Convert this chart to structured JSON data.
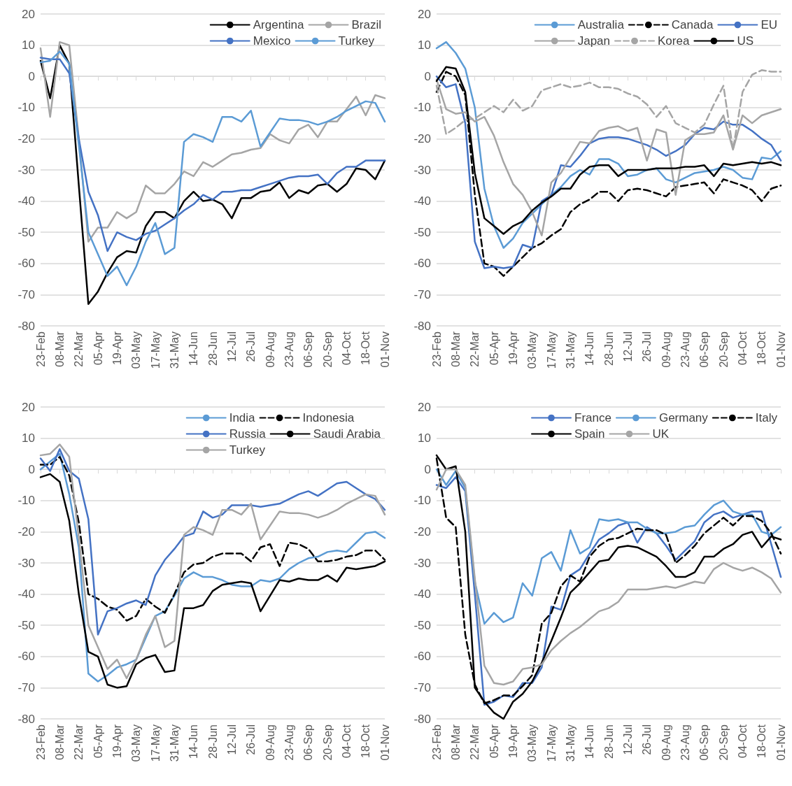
{
  "chart_data": [
    {
      "type": "line",
      "categories": [
        "23-Feb",
        null,
        "08-Mar",
        null,
        "22-Mar",
        null,
        "05-Apr",
        null,
        "19-Apr",
        null,
        "03-May",
        null,
        "17-May",
        null,
        "31-May",
        null,
        "14-Jun",
        null,
        "28-Jun",
        null,
        "12-Jul",
        null,
        "26-Jul",
        null,
        "09-Aug",
        null,
        "23-Aug",
        null,
        "06-Sep",
        null,
        "20-Sep",
        null,
        "04-Oct",
        null,
        "18-Oct",
        null,
        "01-Nov"
      ],
      "series": [
        {
          "name": "Argentina",
          "color": "#000000",
          "line_style": "solid",
          "values": [
            5,
            -7,
            10,
            4,
            -35,
            -73,
            -69,
            -63,
            -58,
            -56,
            -56.5,
            -48,
            -43.5,
            -43.5,
            -45.5,
            -40,
            -37,
            -40,
            -39.5,
            -41,
            -45.5,
            -39,
            -39,
            -37,
            -36.5,
            -34,
            -39,
            -36.5,
            -37.5,
            -35,
            -34.5,
            -37,
            -34.5,
            -29.5,
            -30,
            -33,
            -27
          ]
        },
        {
          "name": "Brazil",
          "color": "#a5a5a5",
          "line_style": "solid",
          "values": [
            9,
            -13,
            11,
            10,
            -20,
            -53,
            -48.5,
            -48.5,
            -43.5,
            -45.5,
            -43.5,
            -35,
            -37.5,
            -37.5,
            -34.5,
            -30.5,
            -32,
            -27.5,
            -29,
            -27,
            -25,
            -24.5,
            -23.5,
            -23,
            -18.5,
            -20.5,
            -21.5,
            -17,
            -15.5,
            -19.5,
            -14.5,
            -14.5,
            -10.5,
            -6.5,
            -12.5,
            -6,
            -7
          ]
        },
        {
          "name": "Mexico",
          "color": "#4472c4",
          "line_style": "solid",
          "values": [
            6,
            5.5,
            5.5,
            1,
            -20,
            -37,
            -44.5,
            -56,
            -50,
            -51.5,
            -52.5,
            -50.5,
            -49.5,
            -47.5,
            -45.5,
            -43,
            -41,
            -38,
            -39.5,
            -37,
            -37,
            -36.5,
            -36.5,
            -35.5,
            -34.5,
            -33.5,
            -32.5,
            -32,
            -32,
            -31.5,
            -34.5,
            -31,
            -29,
            -29,
            -27,
            -27,
            -27
          ]
        },
        {
          "name": "Turkey",
          "color": "#5b9bd5",
          "line_style": "solid",
          "values": [
            4.5,
            5,
            8,
            4,
            -22,
            -50,
            -57,
            -64,
            -61,
            -67,
            -61,
            -53,
            -47,
            -57,
            -55,
            -21,
            -18.5,
            -19.5,
            -21,
            -13,
            -13,
            -14.5,
            -11,
            -22.5,
            -18,
            -13.5,
            -14,
            -14,
            -14.5,
            -15.5,
            -14.5,
            -13,
            -11,
            -9.5,
            -8,
            -8.5,
            -14.5
          ]
        }
      ],
      "ylim": [
        -80,
        20
      ],
      "yticks": [
        -80,
        -70,
        -60,
        -50,
        -40,
        -30,
        -20,
        -10,
        0,
        10,
        20
      ],
      "grid": "y",
      "legend": "top right",
      "marker": "none"
    },
    {
      "type": "line",
      "categories": [
        "23-Feb",
        null,
        "08-Mar",
        null,
        "22-Mar",
        null,
        "05-Apr",
        null,
        "19-Apr",
        null,
        "03-May",
        null,
        "17-May",
        null,
        "31-May",
        null,
        "14-Jun",
        null,
        "28-Jun",
        null,
        "12-Jul",
        null,
        "26-Jul",
        null,
        "09-Aug",
        null,
        "23-Aug",
        null,
        "06-Sep",
        null,
        "20-Sep",
        null,
        "04-Oct",
        null,
        "18-Oct",
        null,
        "01-Nov"
      ],
      "series": [
        {
          "name": "Australia",
          "color": "#5b9bd5",
          "line_style": "solid",
          "values": [
            9,
            11,
            7.5,
            2.5,
            -10,
            -36,
            -48,
            -55,
            -52,
            -47,
            -44,
            -41,
            -38,
            -35.5,
            -32,
            -30,
            -31.5,
            -26.5,
            -26.5,
            -28,
            -32,
            -31.5,
            -30,
            -29.5,
            -33,
            -34,
            -32.5,
            -31,
            -30.5,
            -30,
            -29,
            -30,
            -32.5,
            -33,
            -26,
            -26.5,
            -24
          ]
        },
        {
          "name": "Canada",
          "color": "#000000",
          "line_style": "dashed",
          "values": [
            -5,
            1.5,
            0,
            -6,
            -38,
            -60,
            -61,
            -64,
            -61,
            -58,
            -55,
            -53.5,
            -51,
            -49,
            -43.5,
            -41,
            -39.5,
            -37,
            -37,
            -40,
            -36.5,
            -36,
            -36.5,
            -37.5,
            -38.5,
            -35.5,
            -35,
            -34.5,
            -34,
            -37.5,
            -33,
            -34,
            -35,
            -36.5,
            -40,
            -36,
            -35
          ]
        },
        {
          "name": "EU",
          "color": "#4472c4",
          "line_style": "solid",
          "values": [
            0,
            -3.5,
            -2.5,
            -15,
            -53,
            -61.5,
            -61,
            -61.5,
            -61,
            -54,
            -55,
            -40,
            -38,
            -28.5,
            -29,
            -25.5,
            -21.5,
            -20,
            -19.5,
            -19.5,
            -20,
            -21,
            -22,
            -23.5,
            -25.5,
            -24,
            -22,
            -18.5,
            -16.5,
            -17,
            -14.5,
            -15.5,
            -15.5,
            -17.5,
            -20,
            -22,
            -27
          ]
        },
        {
          "name": "Japan",
          "color": "#a5a5a5",
          "line_style": "solid",
          "values": [
            -1,
            -10.5,
            -12,
            -11.5,
            -14.5,
            -13,
            -19,
            -27.5,
            -34.5,
            -38,
            -43.5,
            -51,
            -34,
            -31,
            -26,
            -21,
            -21.5,
            -17.5,
            -16.5,
            -16,
            -17.5,
            -16.5,
            -27,
            -17,
            -18,
            -38,
            -20.5,
            -18.5,
            -18.5,
            -18,
            -12.5,
            -23.5,
            -12.5,
            -15,
            -12.5,
            -11.5,
            -10.5
          ]
        },
        {
          "name": "Korea",
          "color": "#a5a5a5",
          "line_style": "dashed",
          "values": [
            -3,
            -18.5,
            -16.5,
            -14,
            -13.5,
            -11.5,
            -9.5,
            -11.5,
            -7.5,
            -11,
            -9.5,
            -4.5,
            -3.5,
            -2.5,
            -3.5,
            -3,
            -2,
            -3.5,
            -3.5,
            -4,
            -5.5,
            -6.5,
            -9,
            -13,
            -9.5,
            -15,
            -16.5,
            -18,
            -15.5,
            -9,
            -3,
            -23.5,
            -5,
            0.5,
            2,
            1.5,
            1.5
          ]
        },
        {
          "name": "US",
          "color": "#000000",
          "line_style": "solid",
          "values": [
            -1.5,
            3,
            2.5,
            -5,
            -31,
            -45.5,
            -48,
            -50.5,
            -48,
            -46.5,
            -43,
            -40.5,
            -38.5,
            -36,
            -36,
            -31.5,
            -29,
            -28.5,
            -28.5,
            -32,
            -30,
            -30,
            -30,
            -29.5,
            -29.5,
            -29.5,
            -29,
            -29,
            -28.5,
            -32,
            -28,
            -28.5,
            -28,
            -27.5,
            -28,
            -27.5,
            -28.5
          ]
        }
      ],
      "ylim": [
        -80,
        20
      ],
      "yticks": [
        -80,
        -70,
        -60,
        -50,
        -40,
        -30,
        -20,
        -10,
        0,
        10,
        20
      ],
      "grid": "y",
      "legend": "top right",
      "marker": "none"
    },
    {
      "type": "line",
      "categories": [
        "23-Feb",
        null,
        "08-Mar",
        null,
        "22-Mar",
        null,
        "05-Apr",
        null,
        "19-Apr",
        null,
        "03-May",
        null,
        "17-May",
        null,
        "31-May",
        null,
        "14-Jun",
        null,
        "28-Jun",
        null,
        "12-Jul",
        null,
        "26-Jul",
        null,
        "09-Aug",
        null,
        "23-Aug",
        null,
        "06-Sep",
        null,
        "20-Sep",
        null,
        "04-Oct",
        null,
        "18-Oct",
        null,
        "01-Nov"
      ],
      "series": [
        {
          "name": "India",
          "color": "#5b9bd5",
          "line_style": "solid",
          "values": [
            0,
            2.5,
            5,
            -8,
            -25,
            -65.5,
            -68,
            -66,
            -63.5,
            -62.5,
            -61,
            -54,
            -47,
            -45.5,
            -40.5,
            -35,
            -33,
            -34.5,
            -34.5,
            -35.5,
            -37,
            -37.5,
            -37.5,
            -35.5,
            -36,
            -35,
            -32,
            -30,
            -28.5,
            -28,
            -26.5,
            -26,
            -26.5,
            -23.5,
            -20.5,
            -20,
            -22
          ]
        },
        {
          "name": "Indonesia",
          "color": "#000000",
          "line_style": "dashed",
          "values": [
            1.5,
            1.5,
            4,
            -2,
            -17,
            -40,
            -41.5,
            -44,
            -45,
            -48.5,
            -47,
            -41.5,
            -44,
            -46,
            -40,
            -33,
            -30.5,
            -30,
            -28,
            -27,
            -27,
            -27,
            -29.5,
            -25,
            -24,
            -31,
            -23.5,
            -24,
            -25.5,
            -29.5,
            -29.5,
            -29,
            -28,
            -27.5,
            -26,
            -26,
            -29
          ]
        },
        {
          "name": "Russia",
          "color": "#4472c4",
          "line_style": "solid",
          "values": [
            3.5,
            -0.5,
            6.5,
            -0.5,
            -3,
            -16,
            -53,
            -45.5,
            -44.5,
            -43,
            -42,
            -43.5,
            -34,
            -29,
            -25.5,
            -21.5,
            -20.5,
            -13.5,
            -15.5,
            -14.5,
            -11.5,
            -11.5,
            -11.5,
            -12,
            -11.5,
            -11,
            -9.5,
            -8,
            -7,
            -8.5,
            -6.5,
            -4.5,
            -4,
            -6,
            -8,
            -9.5,
            -13
          ]
        },
        {
          "name": "Saudi Arabia",
          "color": "#000000",
          "line_style": "solid",
          "values": [
            -2.5,
            -1.5,
            -4,
            -16.5,
            -40,
            -58.5,
            -60,
            -69,
            -70,
            -69.5,
            -62.5,
            -60.5,
            -59.5,
            -65,
            -64.5,
            -44.5,
            -44.5,
            -43.5,
            -39,
            -37,
            -36.5,
            -36,
            -36.5,
            -45.5,
            -40.5,
            -35.5,
            -36,
            -35,
            -35.5,
            -35.5,
            -34,
            -36,
            -31.5,
            -32,
            -31.5,
            -31,
            -29.5
          ]
        },
        {
          "name": "Turkey",
          "color": "#a5a5a5",
          "line_style": "solid",
          "values": [
            4.5,
            5,
            8,
            4,
            -22,
            -50,
            -57,
            -64,
            -61,
            -67,
            -61,
            -53,
            -47,
            -57,
            -55,
            -21,
            -18.5,
            -19.5,
            -21,
            -13,
            -13,
            -14.5,
            -11,
            -22.5,
            -18,
            -13.5,
            -14,
            -14,
            -14.5,
            -15.5,
            -14.5,
            -13,
            -11,
            -9.5,
            -8,
            -8.5,
            -14.5
          ]
        }
      ],
      "ylim": [
        -80,
        20
      ],
      "yticks": [
        -80,
        -70,
        -60,
        -50,
        -40,
        -30,
        -20,
        -10,
        0,
        10,
        20
      ],
      "grid": "y",
      "legend": "top right",
      "marker": "none"
    },
    {
      "type": "line",
      "categories": [
        "23-Feb",
        null,
        "08-Mar",
        null,
        "22-Mar",
        null,
        "05-Apr",
        null,
        "19-Apr",
        null,
        "03-May",
        null,
        "17-May",
        null,
        "31-May",
        null,
        "14-Jun",
        null,
        "28-Jun",
        null,
        "12-Jul",
        null,
        "26-Jul",
        null,
        "09-Aug",
        null,
        "23-Aug",
        null,
        "06-Sep",
        null,
        "20-Sep",
        null,
        "04-Oct",
        null,
        "18-Oct",
        null,
        "01-Nov"
      ],
      "series": [
        {
          "name": "France",
          "color": "#4472c4",
          "line_style": "solid",
          "values": [
            -5,
            -6,
            -2.5,
            -7,
            -40,
            -75.5,
            -74.5,
            -72.5,
            -73,
            -68.5,
            -68.5,
            -63.5,
            -44,
            -45,
            -34,
            -32,
            -27,
            -22.5,
            -20.5,
            -18,
            -17,
            -23.5,
            -18.5,
            -20.5,
            -24.5,
            -29,
            -26,
            -23,
            -17,
            -14.5,
            -13.5,
            -15.5,
            -14.5,
            -13.5,
            -13.5,
            -24,
            -34.5
          ]
        },
        {
          "name": "Germany",
          "color": "#5b9bd5",
          "line_style": "solid",
          "values": [
            0,
            -5,
            -0.5,
            -6,
            -36,
            -49.5,
            -46,
            -49,
            -47.5,
            -36.5,
            -40.5,
            -28.5,
            -26.5,
            -32.5,
            -19.5,
            -27,
            -25,
            -16,
            -16.5,
            -16,
            -17,
            -17,
            -19,
            -20.5,
            -20.5,
            -20,
            -18.5,
            -18,
            -14.5,
            -11.5,
            -10,
            -13.5,
            -14.5,
            -14.5,
            -20,
            -21,
            -18.5
          ]
        },
        {
          "name": "Italy",
          "color": "#000000",
          "line_style": "dashed",
          "values": [
            3.5,
            -15.5,
            -18.5,
            -53,
            -69,
            -75,
            -74,
            -72.5,
            -72.5,
            -69.5,
            -66,
            -49.5,
            -46,
            -37.5,
            -34,
            -36,
            -28,
            -24.5,
            -22.5,
            -22,
            -20.5,
            -19,
            -19.5,
            -19.5,
            -21,
            -30,
            -27.5,
            -24.5,
            -20.5,
            -18,
            -15.5,
            -18,
            -15,
            -15,
            -16.5,
            -20.5,
            -27
          ]
        },
        {
          "name": "Spain",
          "color": "#000000",
          "line_style": "solid",
          "values": [
            4.5,
            0,
            1,
            -20,
            -70,
            -74.5,
            -78,
            -80,
            -74.5,
            -72,
            -68,
            -62,
            -55,
            -47.5,
            -39.5,
            -36.5,
            -33,
            -29.5,
            -29,
            -25,
            -24.5,
            -25,
            -26.5,
            -28,
            -31,
            -34.5,
            -34.5,
            -33,
            -28,
            -28,
            -25.5,
            -24,
            -21,
            -20,
            -25,
            -21.5,
            -22.5
          ]
        },
        {
          "name": "UK",
          "color": "#a5a5a5",
          "line_style": "solid",
          "values": [
            -6.5,
            0,
            0,
            -5,
            -35,
            -63,
            -68.5,
            -69,
            -68,
            -64,
            -63.5,
            -62.5,
            -58,
            -55,
            -52.5,
            -50.5,
            -48,
            -45.5,
            -44.5,
            -42.5,
            -38.5,
            -38.5,
            -38.5,
            -38,
            -37.5,
            -38,
            -37,
            -36,
            -36.5,
            -32,
            -30,
            -31.5,
            -32.5,
            -31.5,
            -33,
            -35,
            -39.5
          ]
        }
      ],
      "ylim": [
        -80,
        20
      ],
      "yticks": [
        -80,
        -70,
        -60,
        -50,
        -40,
        -30,
        -20,
        -10,
        0,
        10,
        20
      ],
      "grid": "y",
      "legend": "top right",
      "marker": "none"
    }
  ]
}
